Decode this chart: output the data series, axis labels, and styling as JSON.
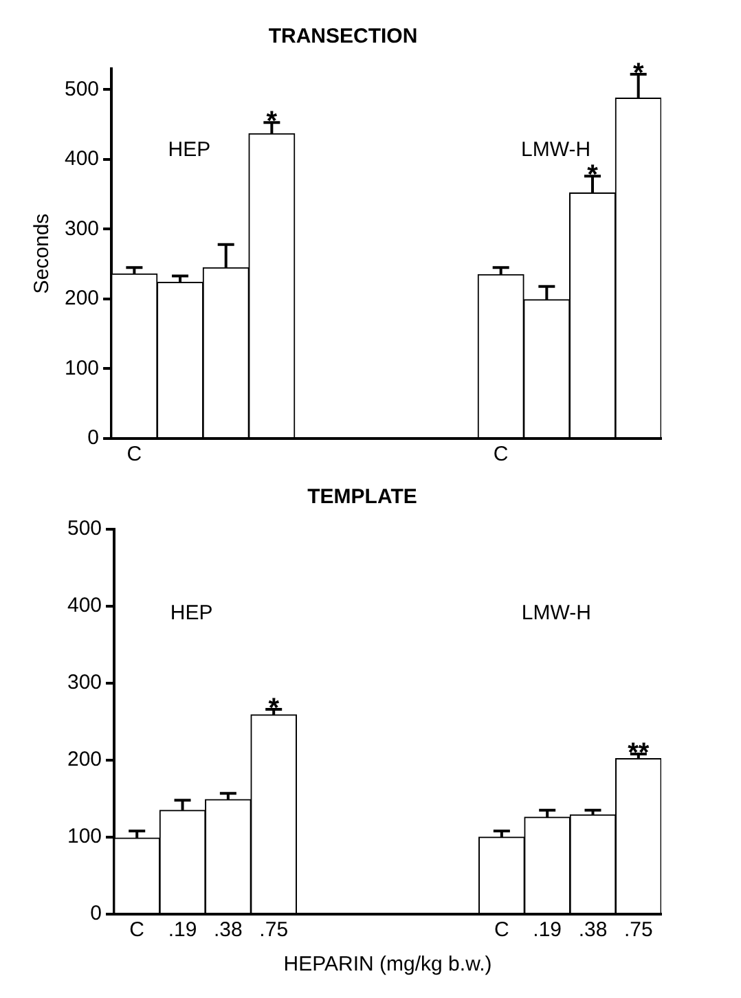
{
  "chart_data": [
    {
      "type": "bar",
      "title": "TRANSECTION",
      "ylabel": "Seconds",
      "color": "#ffffff",
      "categories": [
        "C",
        null,
        null,
        null,
        null,
        null,
        null,
        null,
        "C",
        null,
        null,
        null
      ],
      "values": [
        236,
        224,
        245,
        437,
        null,
        null,
        null,
        null,
        235,
        199,
        352,
        488
      ],
      "errors": [
        [
          236,
          245
        ],
        [
          224,
          233
        ],
        [
          245,
          278
        ],
        [
          437,
          453
        ],
        null,
        null,
        null,
        null,
        [
          235,
          245
        ],
        [
          199,
          218
        ],
        [
          352,
          376
        ],
        [
          488,
          522
        ]
      ],
      "value_labels": [
        null,
        null,
        null,
        "*",
        null,
        null,
        null,
        null,
        null,
        null,
        "*",
        "*"
      ],
      "annotations": [
        "HEP",
        "LMW-H"
      ],
      "ylim": [
        0,
        530
      ],
      "yticks": [
        0,
        100,
        200,
        300,
        400,
        500
      ],
      "grid": false,
      "legend": false
    },
    {
      "type": "bar",
      "title": "TEMPLATE",
      "xlabel": "HEPARIN (mg/kg b.w.)",
      "color": "#ffffff",
      "categories": [
        "C",
        ".19",
        ".38",
        ".75",
        null,
        null,
        null,
        null,
        "C",
        ".19",
        ".38",
        ".75"
      ],
      "values": [
        99,
        135,
        149,
        259,
        null,
        null,
        null,
        null,
        100,
        126,
        129,
        202
      ],
      "errors": [
        [
          99,
          108
        ],
        [
          135,
          148
        ],
        [
          149,
          157
        ],
        [
          259,
          266
        ],
        null,
        null,
        null,
        null,
        [
          100,
          108
        ],
        [
          126,
          135
        ],
        [
          129,
          135
        ],
        [
          202,
          208
        ]
      ],
      "value_labels": [
        null,
        null,
        null,
        "*",
        null,
        null,
        null,
        null,
        null,
        null,
        null,
        "**"
      ],
      "annotations": [
        "HEP",
        "LMW-H"
      ],
      "ylim": [
        0,
        500
      ],
      "yticks": [
        0,
        100,
        200,
        300,
        400,
        500
      ],
      "grid": false,
      "legend": false
    }
  ]
}
